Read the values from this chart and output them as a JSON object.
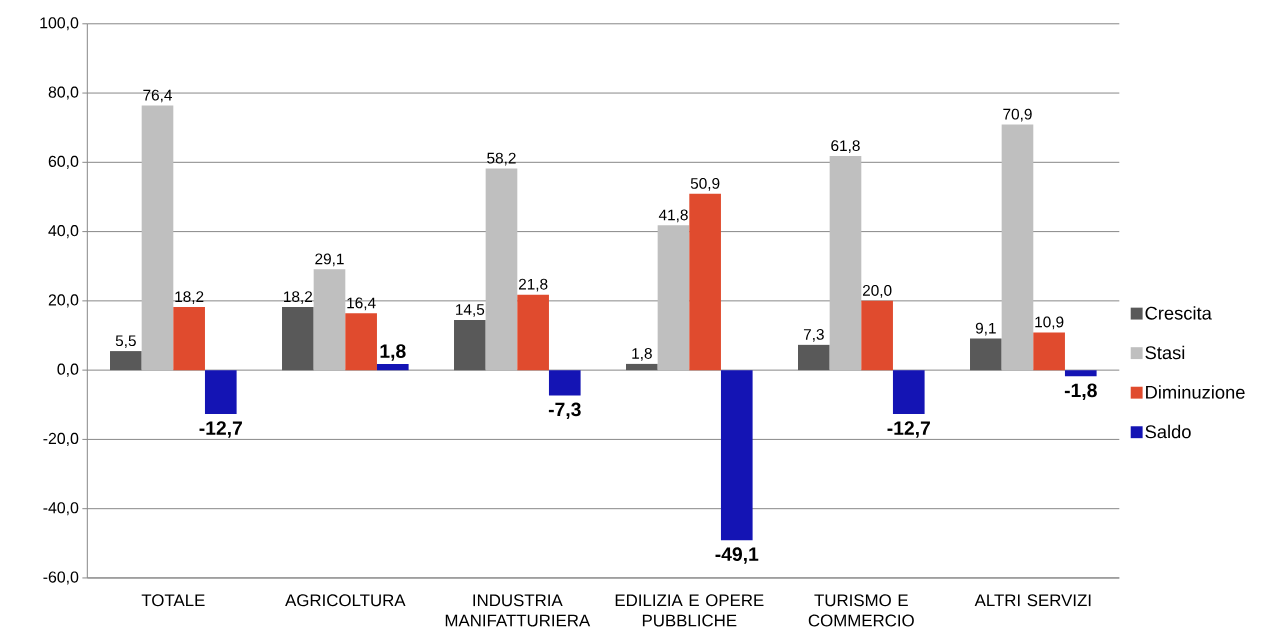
{
  "chart_data": {
    "type": "bar",
    "categories": [
      "TOTALE",
      "AGRICOLTURA",
      "INDUSTRIA MANIFATTURIERA",
      "EDILIZIA E OPERE PUBBLICHE",
      "TURISMO E COMMERCIO",
      "ALTRI SERVIZI"
    ],
    "series": [
      {
        "name": "Crescita",
        "color": "#595959",
        "values": [
          5.5,
          18.2,
          14.5,
          1.8,
          7.3,
          9.1
        ],
        "value_labels": [
          "5,5",
          "18,2",
          "14,5",
          "1,8",
          "7,3",
          "9,1"
        ]
      },
      {
        "name": "Stasi",
        "color": "#bfbfbf",
        "values": [
          76.4,
          29.1,
          58.2,
          41.8,
          61.8,
          70.9
        ],
        "value_labels": [
          "76,4",
          "29,1",
          "58,2",
          "41,8",
          "61,8",
          "70,9"
        ]
      },
      {
        "name": "Diminuzione",
        "color": "#e04b2e",
        "values": [
          18.2,
          16.4,
          21.8,
          50.9,
          20.0,
          10.9
        ],
        "value_labels": [
          "18,2",
          "16,4",
          "21,8",
          "50,9",
          "20,0",
          "10,9"
        ]
      },
      {
        "name": "Saldo",
        "color": "#1414b4",
        "values": [
          -12.7,
          1.8,
          -7.3,
          -49.1,
          -12.7,
          -1.8
        ],
        "value_labels": [
          "-12,7",
          "1,8",
          "-7,3",
          "-49,1",
          "-12,7",
          "-1,8"
        ]
      }
    ],
    "ylim": [
      -60,
      100
    ],
    "yticks": [
      {
        "value": -60,
        "label": "-60,0"
      },
      {
        "value": -40,
        "label": "-40,0"
      },
      {
        "value": -20,
        "label": "-20,0"
      },
      {
        "value": 0,
        "label": "0,0"
      },
      {
        "value": 20,
        "label": "20,0"
      },
      {
        "value": 40,
        "label": "40,0"
      },
      {
        "value": 60,
        "label": "60,0"
      },
      {
        "value": 80,
        "label": "80,0"
      },
      {
        "value": 100,
        "label": "100,0"
      }
    ],
    "grid": "y",
    "legend": "right"
  }
}
